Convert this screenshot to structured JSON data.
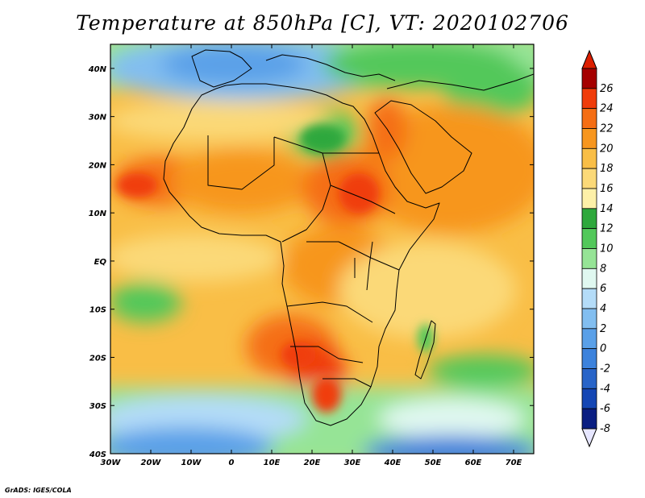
{
  "title": "Temperature at 850hPa [C], VT: 2020102706",
  "credit": "GrADS: IGES/COLA",
  "map": {
    "lon_range": [
      -30,
      75
    ],
    "lat_range": [
      -40,
      45
    ],
    "lon_ticks": [
      {
        "lon": -30,
        "label": "30W"
      },
      {
        "lon": -20,
        "label": "20W"
      },
      {
        "lon": -10,
        "label": "10W"
      },
      {
        "lon": 0,
        "label": "0"
      },
      {
        "lon": 10,
        "label": "10E"
      },
      {
        "lon": 20,
        "label": "20E"
      },
      {
        "lon": 30,
        "label": "30E"
      },
      {
        "lon": 40,
        "label": "40E"
      },
      {
        "lon": 50,
        "label": "50E"
      },
      {
        "lon": 60,
        "label": "60E"
      },
      {
        "lon": 70,
        "label": "70E"
      }
    ],
    "lat_ticks": [
      {
        "lat": 40,
        "label": "40N"
      },
      {
        "lat": 30,
        "label": "30N"
      },
      {
        "lat": 20,
        "label": "20N"
      },
      {
        "lat": 10,
        "label": "10N"
      },
      {
        "lat": 0,
        "label": "EQ"
      },
      {
        "lat": -10,
        "label": "10S"
      },
      {
        "lat": -20,
        "label": "20S"
      },
      {
        "lat": -30,
        "label": "30S"
      },
      {
        "lat": -40,
        "label": "40S"
      }
    ]
  },
  "colorbar": {
    "levels": [
      {
        "label": "26",
        "color": "#a50000"
      },
      {
        "label": "24",
        "color": "#f03c0a"
      },
      {
        "label": "22",
        "color": "#f56e14"
      },
      {
        "label": "20",
        "color": "#f7961e"
      },
      {
        "label": "18",
        "color": "#f9be46"
      },
      {
        "label": "16",
        "color": "#fbd978"
      },
      {
        "label": "14",
        "color": "#fdf0a8"
      },
      {
        "label": "12",
        "color": "#2ea83c"
      },
      {
        "label": "10",
        "color": "#52c85a"
      },
      {
        "label": "8",
        "color": "#96e496"
      },
      {
        "label": "6",
        "color": "#e0f8f0"
      },
      {
        "label": "4",
        "color": "#b4dcf8"
      },
      {
        "label": "2",
        "color": "#82bef0"
      },
      {
        "label": "0",
        "color": "#5aa0e8"
      },
      {
        "label": "-2",
        "color": "#3c82dc"
      },
      {
        "label": "-4",
        "color": "#2864c8"
      },
      {
        "label": "-6",
        "color": "#1446b4"
      },
      {
        "label": "-8",
        "color": "#0a1e82"
      }
    ],
    "top_color": "#dc1e00",
    "bottom_color": "#e6e6ff"
  }
}
